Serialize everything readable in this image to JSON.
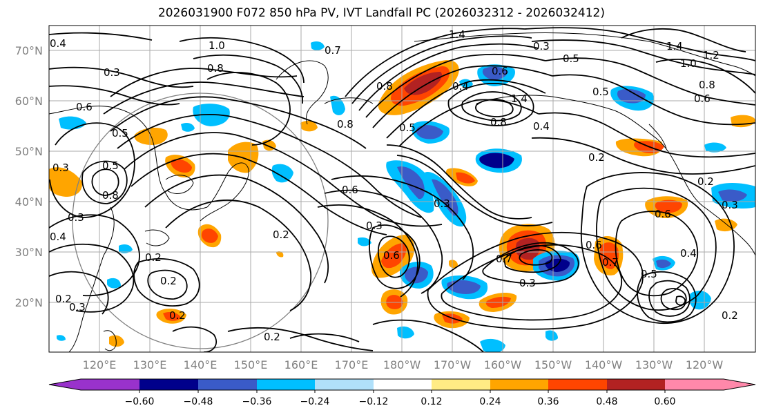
{
  "title": "2026031900 F072 850 hPa PV, IVT Landfall PC (2026032312 - 2026032412)",
  "lat_labels": [
    "70°N",
    "60°N",
    "50°N",
    "40°N",
    "30°N",
    "20°N"
  ],
  "lon_labels": [
    "120°E",
    "130°E",
    "140°E",
    "150°E",
    "160°E",
    "170°E",
    "180°W",
    "170°W",
    "160°W",
    "150°W",
    "140°W",
    "130°W",
    "120°W"
  ],
  "colorbar": {
    "colors": [
      "#9932cc",
      "#00008b",
      "#3a5bc8",
      "#00bfff",
      "#b0e0fa",
      "#ffffff",
      "#ffeb84",
      "#ffa500",
      "#ff4500",
      "#b22222",
      "#ff88aa"
    ],
    "ticks": [
      "−0.60",
      "−0.48",
      "−0.36",
      "−0.24",
      "−0.12",
      "0.12",
      "0.24",
      "0.36",
      "0.48",
      "0.60"
    ]
  },
  "contour_labels": [
    "0.4",
    "1.0",
    "0.7",
    "1.4",
    "0.3",
    "0.5",
    "1.4",
    "1.0",
    "1.2",
    "0.3",
    "0.8",
    "0.8",
    "0.6",
    "0.4",
    "0.5",
    "0.8",
    "0.6",
    "0.5",
    "1.4",
    "0.4",
    "0.6",
    "0.8",
    "0.8",
    "0.5",
    "0.2",
    "0.3",
    "0.5",
    "0.6",
    "0.3",
    "0.8",
    "0.3",
    "0.2",
    "0.3",
    "0.4",
    "0.2",
    "0.2",
    "0.6",
    "0.7",
    "0.3",
    "0.6",
    "0.7",
    "0.6",
    "0.4",
    "0.5",
    "0.2",
    "0.2",
    "0.2",
    "0.3",
    "0.2",
    "0.2",
    "0.3"
  ]
}
